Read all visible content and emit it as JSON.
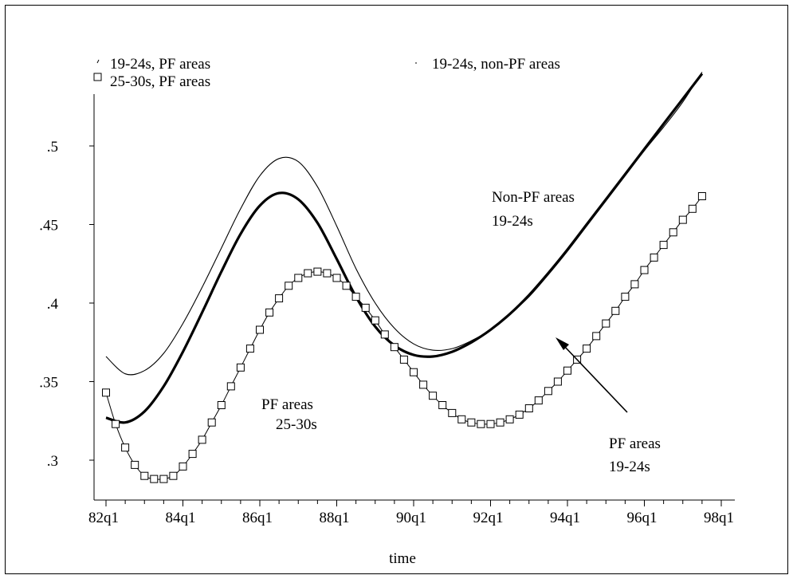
{
  "chart_data": {
    "type": "line",
    "title": "",
    "xlabel": "time",
    "ylabel": "",
    "x_ticks": [
      "82q1",
      "84q1",
      "86q1",
      "88q1",
      "90q1",
      "92q1",
      "94q1",
      "96q1",
      "98q1"
    ],
    "x_range": [
      0,
      64
    ],
    "y_ticks": [
      ".3",
      ".35",
      ".4",
      ".45",
      ".5"
    ],
    "ylim": [
      0.28,
      0.53
    ],
    "grid": false,
    "legend": {
      "placement": "top",
      "entries": [
        "19-24s, PF areas",
        "25-30s, PF areas",
        "19-24s, non-PF areas"
      ]
    },
    "series": [
      {
        "name": "19-24s, non-PF areas",
        "style": "thin",
        "x": [
          0,
          2,
          4,
          6,
          8,
          10,
          12,
          14,
          16,
          18,
          20,
          22,
          24,
          26,
          28,
          30,
          32,
          34,
          36,
          38,
          40,
          42,
          44,
          46,
          48,
          50,
          52,
          54,
          56,
          58,
          60,
          62
        ],
        "values": [
          0.366,
          0.355,
          0.357,
          0.368,
          0.387,
          0.41,
          0.435,
          0.46,
          0.481,
          0.492,
          0.49,
          0.474,
          0.449,
          0.422,
          0.4,
          0.384,
          0.374,
          0.37,
          0.371,
          0.376,
          0.383,
          0.393,
          0.404,
          0.418,
          0.433,
          0.449,
          0.465,
          0.481,
          0.497,
          0.512,
          0.528,
          0.547
        ]
      },
      {
        "name": "19-24s, PF areas",
        "style": "thick",
        "x": [
          0,
          2,
          4,
          6,
          8,
          10,
          12,
          14,
          16,
          18,
          20,
          22,
          24,
          26,
          28,
          30,
          32,
          34,
          36,
          38,
          40,
          42,
          44,
          46,
          48,
          50,
          52,
          54,
          56,
          58,
          60,
          62
        ],
        "values": [
          0.327,
          0.324,
          0.331,
          0.347,
          0.369,
          0.394,
          0.42,
          0.444,
          0.462,
          0.47,
          0.466,
          0.451,
          0.428,
          0.404,
          0.385,
          0.373,
          0.367,
          0.366,
          0.369,
          0.375,
          0.383,
          0.393,
          0.405,
          0.419,
          0.434,
          0.45,
          0.466,
          0.482,
          0.498,
          0.514,
          0.53,
          0.546
        ]
      },
      {
        "name": "25-30s, PF areas",
        "style": "squares",
        "x": [
          0,
          1,
          2,
          3,
          4,
          5,
          6,
          7,
          8,
          9,
          10,
          11,
          12,
          13,
          14,
          15,
          16,
          17,
          18,
          19,
          20,
          21,
          22,
          23,
          24,
          25,
          26,
          27,
          28,
          29,
          30,
          31,
          32,
          33,
          34,
          35,
          36,
          37,
          38,
          39,
          40,
          41,
          42,
          43,
          44,
          45,
          46,
          47,
          48,
          49,
          50,
          51,
          52,
          53,
          54,
          55,
          56,
          57,
          58,
          59,
          60,
          61,
          62
        ],
        "values": [
          0.343,
          0.323,
          0.308,
          0.297,
          0.29,
          0.288,
          0.288,
          0.29,
          0.296,
          0.304,
          0.313,
          0.324,
          0.335,
          0.347,
          0.359,
          0.371,
          0.383,
          0.394,
          0.403,
          0.411,
          0.416,
          0.419,
          0.42,
          0.419,
          0.416,
          0.411,
          0.404,
          0.397,
          0.389,
          0.38,
          0.372,
          0.364,
          0.356,
          0.348,
          0.341,
          0.335,
          0.33,
          0.326,
          0.324,
          0.323,
          0.323,
          0.324,
          0.326,
          0.329,
          0.333,
          0.338,
          0.344,
          0.35,
          0.357,
          0.364,
          0.371,
          0.379,
          0.387,
          0.395,
          0.404,
          0.412,
          0.421,
          0.429,
          0.437,
          0.445,
          0.453,
          0.46,
          0.468
        ]
      }
    ],
    "annotations": [
      {
        "lines": [
          "Non-PF areas",
          "19-24s"
        ]
      },
      {
        "lines": [
          "PF areas",
          "25-30s"
        ]
      },
      {
        "lines": [
          "PF areas",
          "19-24s"
        ],
        "arrow": true
      }
    ]
  }
}
